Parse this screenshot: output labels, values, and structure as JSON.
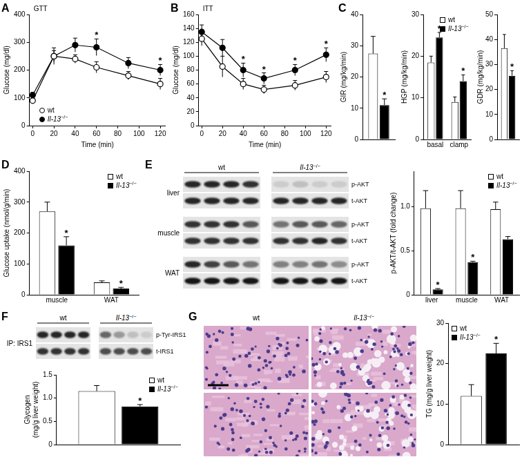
{
  "chart_data": [
    {
      "panel": "A",
      "type": "line",
      "title": "GTT",
      "x_label": "Time (min)",
      "y_label": "Glucose (mg/dl)",
      "x": [
        0,
        20,
        40,
        60,
        90,
        120
      ],
      "xlim": [
        -3,
        125
      ],
      "xticks": [
        0,
        20,
        40,
        60,
        80,
        100,
        120
      ],
      "ylim": [
        0,
        400
      ],
      "yticks": [
        0,
        100,
        200,
        300,
        400
      ],
      "grid": false,
      "legend": "lower left",
      "series": [
        {
          "name": "wt",
          "color": "#ffffff",
          "marker": "circle",
          "values": [
            90,
            250,
            240,
            210,
            180,
            150
          ],
          "errors": [
            8,
            20,
            15,
            20,
            15,
            20
          ],
          "annotations": [
            null,
            null,
            null,
            null,
            null,
            null
          ]
        },
        {
          "name": "Il-13−/−",
          "color": "#000000",
          "marker": "circle",
          "values": [
            110,
            250,
            290,
            282,
            225,
            200
          ],
          "errors": [
            10,
            30,
            25,
            30,
            20,
            20
          ],
          "annotations": [
            null,
            null,
            null,
            "*",
            null,
            "*"
          ]
        }
      ]
    },
    {
      "panel": "B",
      "type": "line",
      "title": "ITT",
      "x_label": "Time (min)",
      "y_label": "Glucose (mg/dl)",
      "x": [
        0,
        20,
        40,
        60,
        90,
        120
      ],
      "xlim": [
        -3,
        125
      ],
      "xticks": [
        0,
        20,
        40,
        60,
        80,
        100,
        120
      ],
      "ylim": [
        0,
        160
      ],
      "yticks": [
        0,
        20,
        40,
        60,
        80,
        100,
        120,
        140,
        160
      ],
      "grid": false,
      "series": [
        {
          "name": "wt",
          "color": "#ffffff",
          "marker": "circle",
          "values": [
            125,
            85,
            60,
            52,
            58,
            70
          ],
          "errors": [
            10,
            15,
            8,
            6,
            7,
            8
          ],
          "annotations": [
            null,
            null,
            null,
            null,
            null,
            null
          ]
        },
        {
          "name": "Il-13−/−",
          "color": "#000000",
          "marker": "circle",
          "values": [
            135,
            112,
            80,
            68,
            80,
            102
          ],
          "errors": [
            10,
            12,
            10,
            8,
            8,
            10
          ],
          "annotations": [
            null,
            null,
            "*",
            "*",
            "*",
            "*"
          ]
        }
      ]
    },
    {
      "panel": "C",
      "type": "bar",
      "y_label": "GIR (mg/kg/min)",
      "categories": [
        null
      ],
      "ylim": [
        0,
        40
      ],
      "yticks": [
        0,
        10,
        20,
        30,
        40
      ],
      "grid": false,
      "series": [
        {
          "name": "wt",
          "color": "#ffffff",
          "values": [
            27.5
          ],
          "errors": [
            5.5
          ],
          "annotations": [
            null
          ]
        },
        {
          "name": "Il-13−/−",
          "color": "#000000",
          "values": [
            11
          ],
          "errors": [
            2
          ],
          "annotations": [
            "*"
          ]
        }
      ]
    },
    {
      "type": "bar",
      "y_label": "HGP (mg/kg/min)",
      "categories": [
        "basal",
        "clamp"
      ],
      "ylim": [
        0,
        30
      ],
      "yticks": [
        0,
        10,
        20,
        30
      ],
      "grid": false,
      "legend": "upper right",
      "series": [
        {
          "name": "wt",
          "color": "#ffffff",
          "values": [
            18.5,
            9
          ],
          "errors": [
            1.5,
            1.2
          ],
          "annotations": [
            null,
            null
          ]
        },
        {
          "name": "Il-13−/−",
          "color": "#000000",
          "values": [
            24.5,
            14
          ],
          "errors": [
            1.2,
            1.5
          ],
          "annotations": [
            "*",
            "*"
          ]
        }
      ]
    },
    {
      "type": "bar",
      "y_label": "GDR (mg/kg/min)",
      "categories": [
        null
      ],
      "ylim": [
        0,
        50
      ],
      "yticks": [
        0,
        10,
        20,
        30,
        40,
        50
      ],
      "grid": false,
      "series": [
        {
          "name": "wt",
          "color": "#ffffff",
          "values": [
            36.5
          ],
          "errors": [
            5.5
          ],
          "annotations": [
            null
          ]
        },
        {
          "name": "Il-13−/−",
          "color": "#000000",
          "values": [
            25.5
          ],
          "errors": [
            2
          ],
          "annotations": [
            "*"
          ]
        }
      ]
    },
    {
      "panel": "D",
      "type": "bar",
      "y_label": "Glucose uptake (nmol/g/min)",
      "categories": [
        "muscle",
        "WAT"
      ],
      "ylim": [
        0,
        400
      ],
      "yticks": [
        0,
        100,
        200,
        300,
        400
      ],
      "grid": false,
      "legend": "upper right",
      "series": [
        {
          "name": "wt",
          "color": "#ffffff",
          "values": [
            270,
            40
          ],
          "errors": [
            30,
            5
          ],
          "annotations": [
            null,
            null
          ]
        },
        {
          "name": "Il-13−/−",
          "color": "#000000",
          "values": [
            160,
            20
          ],
          "errors": [
            28,
            4
          ],
          "annotations": [
            "*",
            "*"
          ]
        }
      ]
    },
    {
      "type": "bar",
      "y_label": "p-AKT/t-AKT (fold change)",
      "categories": [
        "liver",
        "muscle",
        "WAT"
      ],
      "ylim": [
        0,
        1.4
      ],
      "yticks": [
        0,
        0.5,
        {
          "value": 1,
          "label": "1.0"
        }
      ],
      "grid": false,
      "legend": "upper right",
      "series": [
        {
          "name": "wt",
          "color": "#ffffff",
          "values": [
            0.98,
            0.98,
            0.97
          ],
          "errors": [
            0.2,
            0.2,
            0.08
          ],
          "annotations": [
            null,
            null,
            null
          ]
        },
        {
          "name": "Il-13−/−",
          "color": "#000000",
          "values": [
            0.06,
            0.37,
            0.63
          ],
          "errors": [
            0.01,
            0.01,
            0.03
          ],
          "annotations": [
            "*",
            "*",
            null
          ]
        }
      ]
    },
    {
      "type": "bar",
      "y_label": "Glycogen (mg/g liver weight)",
      "categories": [
        null
      ],
      "ylim": [
        0,
        1.5
      ],
      "yticks": [
        0,
        0.5,
        {
          "value": 1,
          "label": "1.0"
        },
        1.5
      ],
      "grid": false,
      "legend": "upper right",
      "series": [
        {
          "name": "wt",
          "color": "#ffffff",
          "values": [
            1.15
          ],
          "errors": [
            0.12
          ],
          "annotations": [
            null
          ]
        },
        {
          "name": "Il-13−/−",
          "color": "#000000",
          "values": [
            0.82
          ],
          "errors": [
            0.04
          ],
          "annotations": [
            "*"
          ]
        }
      ]
    },
    {
      "type": "bar",
      "y_label": "TG (mg/g liver weight)",
      "categories": [
        null
      ],
      "ylim": [
        0,
        30
      ],
      "yticks": [
        0,
        10,
        20,
        30
      ],
      "grid": false,
      "legend": "upper left",
      "series": [
        {
          "name": "wt",
          "color": "#ffffff",
          "values": [
            12
          ],
          "errors": [
            2.8
          ],
          "annotations": [
            null
          ]
        },
        {
          "name": "Il-13−/−",
          "color": "#000000",
          "values": [
            22.5
          ],
          "errors": [
            2.5
          ],
          "annotations": [
            "*"
          ]
        }
      ]
    }
  ],
  "blots": [
    {
      "panel": "E",
      "groups": [
        "wt",
        "Il-13−/−"
      ],
      "sections": [
        {
          "label": "liver",
          "rows": [
            {
              "label": "p-AKT",
              "intensity": [
                [
                  0.85,
                  0.85,
                  0.85,
                  0.8
                ],
                [
                  0.2,
                  0.25,
                  0.2,
                  0.2
                ]
              ]
            },
            {
              "label": "t-AKT",
              "intensity": [
                [
                  0.85,
                  0.85,
                  0.85,
                  0.85
                ],
                [
                  0.85,
                  0.85,
                  0.85,
                  0.85
                ]
              ]
            }
          ]
        },
        {
          "label": "muscle",
          "rows": [
            {
              "label": "p-AKT",
              "intensity": [
                [
                  0.8,
                  0.8,
                  0.8,
                  0.65
                ],
                [
                  0.55,
                  0.65,
                  0.65,
                  0.6
                ]
              ]
            },
            {
              "label": "t-AKT",
              "intensity": [
                [
                  0.8,
                  0.8,
                  0.8,
                  0.8
                ],
                [
                  0.8,
                  0.8,
                  0.85,
                  0.8
                ]
              ]
            }
          ]
        },
        {
          "label": "WAT",
          "rows": [
            {
              "label": "p-AKT",
              "intensity": [
                [
                  0.85,
                  0.75,
                  0.65,
                  0.55
                ],
                [
                  0.5,
                  0.5,
                  0.55,
                  0.45
                ]
              ]
            },
            {
              "label": "t-AKT",
              "intensity": [
                [
                  0.9,
                  0.9,
                  0.9,
                  0.9
                ],
                [
                  0.9,
                  0.9,
                  0.9,
                  0.9
                ]
              ]
            }
          ]
        }
      ]
    },
    {
      "panel": "F",
      "groups": [
        "wt",
        "Il-13−/−"
      ],
      "sections": [
        {
          "label": "IP: IRS1",
          "rows": [
            {
              "label": "p-Tyr-IRS1",
              "intensity": [
                [
                  0.85,
                  0.85,
                  0.85,
                  0.85
                ],
                [
                  0.6,
                  0.4,
                  0.25,
                  0.2
                ]
              ]
            },
            {
              "label": "t-IRS1",
              "intensity": [
                [
                  0.8,
                  0.8,
                  0.8,
                  0.8
                ],
                [
                  0.7,
                  0.7,
                  0.7,
                  0.7
                ]
              ]
            }
          ]
        }
      ]
    }
  ],
  "histology": {
    "panel": "G",
    "columns": [
      "wt",
      "Il-13−/−"
    ]
  }
}
